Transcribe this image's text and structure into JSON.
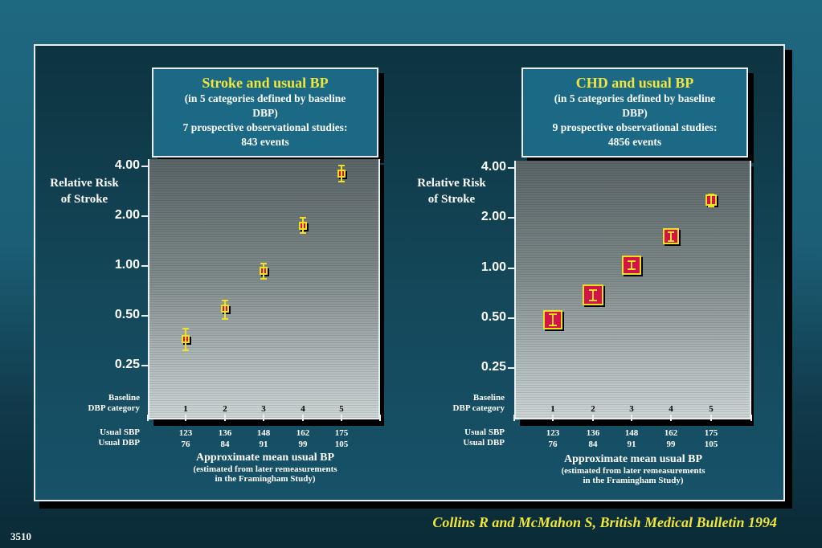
{
  "citation": "Collins R and McMahon S, British Medical Bulletin 1994",
  "slide_number": "3510",
  "row_labels": {
    "baseline": [
      "Baseline",
      "DBP category"
    ],
    "sbp": "Usual SBP",
    "dbp": "Usual DBP"
  },
  "x_title": {
    "main": "Approximate mean usual BP",
    "sub1": "(estimated from later remeasurements",
    "sub2": "in the Framingham Study)"
  },
  "colors": {
    "marker_fill": "#d2144a",
    "marker_border": "#f0e020",
    "title_main": "#f0e63c"
  },
  "chart_data": [
    {
      "type": "scatter",
      "title": "Stroke and usual BP",
      "subtitle": [
        "(in 5 categories defined by baseline",
        "DBP)",
        "7 prospective observational studies:",
        "843 events"
      ],
      "ylabel": [
        "Relative Risk",
        "of Stroke"
      ],
      "y_scale": "log",
      "yticks": [
        4.0,
        2.0,
        1.0,
        0.5,
        0.25
      ],
      "ytick_labels": [
        "4.00",
        "2.00",
        "1.00",
        "0.50",
        "0.25"
      ],
      "categories": [
        "1",
        "2",
        "3",
        "4",
        "5"
      ],
      "usual_sbp": [
        "123",
        "136",
        "148",
        "162",
        "175"
      ],
      "usual_dbp": [
        "76",
        "84",
        "91",
        "99",
        "105"
      ],
      "values": [
        0.36,
        0.55,
        0.93,
        1.75,
        3.6
      ],
      "ci_lower": [
        0.31,
        0.48,
        0.84,
        1.58,
        3.25
      ],
      "ci_upper": [
        0.42,
        0.62,
        1.03,
        1.95,
        4.05
      ],
      "marker_size": [
        10,
        10,
        10,
        10,
        10
      ]
    },
    {
      "type": "scatter",
      "title": "CHD and usual BP",
      "subtitle": [
        "(in 5 categories defined by baseline",
        "DBP)",
        "9 prospective observational studies:",
        "4856 events"
      ],
      "ylabel": [
        "Relative Risk",
        "of Stroke"
      ],
      "y_scale": "log",
      "yticks": [
        4.0,
        2.0,
        1.0,
        0.5,
        0.25
      ],
      "ytick_labels": [
        "4.00",
        "2.00",
        "1.00",
        "0.50",
        "0.25"
      ],
      "categories": [
        "1",
        "2",
        "3",
        "4",
        "5"
      ],
      "usual_sbp": [
        "123",
        "136",
        "148",
        "162",
        "175"
      ],
      "usual_dbp": [
        "76",
        "84",
        "91",
        "99",
        "105"
      ],
      "values": [
        0.49,
        0.69,
        1.04,
        1.55,
        2.55
      ],
      "ci_lower": [
        0.45,
        0.64,
        0.98,
        1.46,
        2.35
      ],
      "ci_upper": [
        0.53,
        0.74,
        1.1,
        1.64,
        2.77
      ],
      "marker_size": [
        24,
        26,
        24,
        20,
        14
      ]
    }
  ]
}
